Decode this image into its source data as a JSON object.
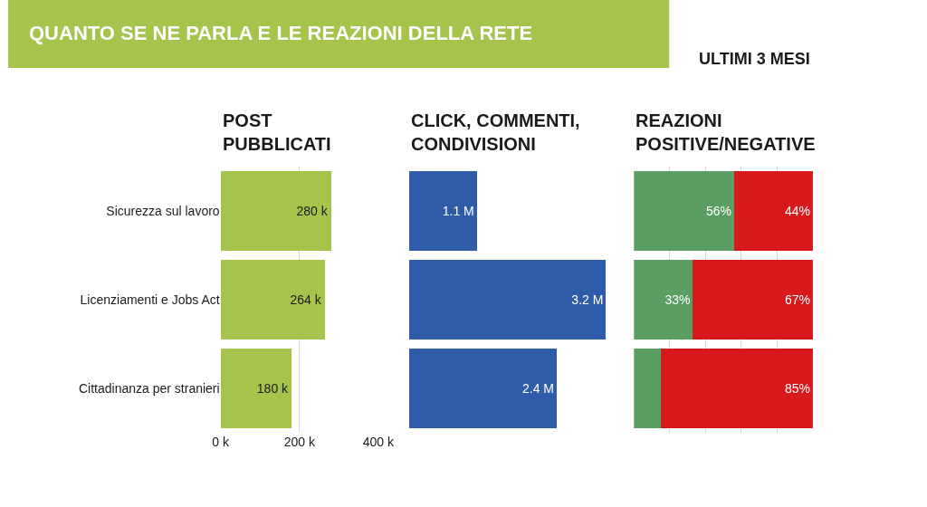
{
  "chart_data": [
    {
      "type": "bar",
      "orientation": "horizontal",
      "title": "POST\nPUBBLICATI",
      "annotations": [
        "QUANTO SE NE PARLA E LE REAZIONI DELLA RETE",
        "ULTIMI 3 MESI"
      ],
      "categories": [
        "Sicurezza sul lavoro",
        "Licenziamenti e Jobs Act",
        "Cittadinanza per stranieri"
      ],
      "series": [
        {
          "color": "#a6c34c",
          "values": [
            280,
            264,
            180
          ],
          "value_labels": [
            "280 k",
            "264 k",
            "180 k"
          ]
        }
      ],
      "xlim": [
        0,
        400
      ],
      "xticks": [
        {
          "value": 0,
          "label": "0 k"
        },
        {
          "value": 200,
          "label": "200 k"
        },
        {
          "value": 400,
          "label": "400 k"
        }
      ],
      "grid": "x"
    },
    {
      "type": "bar",
      "orientation": "horizontal",
      "title": "CLICK, COMMENTI,\nCONDIVISIONI",
      "series": [
        {
          "color": "#2f5ca8",
          "values": [
            1.1,
            3.2,
            2.4
          ],
          "value_labels": [
            "1.1 M",
            "3.2 M",
            "2.4 M"
          ]
        }
      ]
    },
    {
      "type": "bar",
      "orientation": "horizontal",
      "stacked": true,
      "title": "REAZIONI\nPOSITIVE/NEGATIVE",
      "series": [
        {
          "color": "#5a9e64",
          "values": [
            56,
            33,
            15
          ],
          "value_labels": [
            "56%",
            "33%",
            null
          ]
        },
        {
          "color": "#d7191c",
          "values": [
            44,
            67,
            85
          ],
          "value_labels": [
            "44%",
            "67%",
            "85%"
          ]
        }
      ],
      "xlim": [
        0,
        100
      ],
      "xticks": [
        {
          "value": 20,
          "label": null
        },
        {
          "value": 40,
          "label": null
        },
        {
          "value": 60,
          "label": null
        },
        {
          "value": 80,
          "label": null
        }
      ],
      "grid": "x"
    }
  ]
}
